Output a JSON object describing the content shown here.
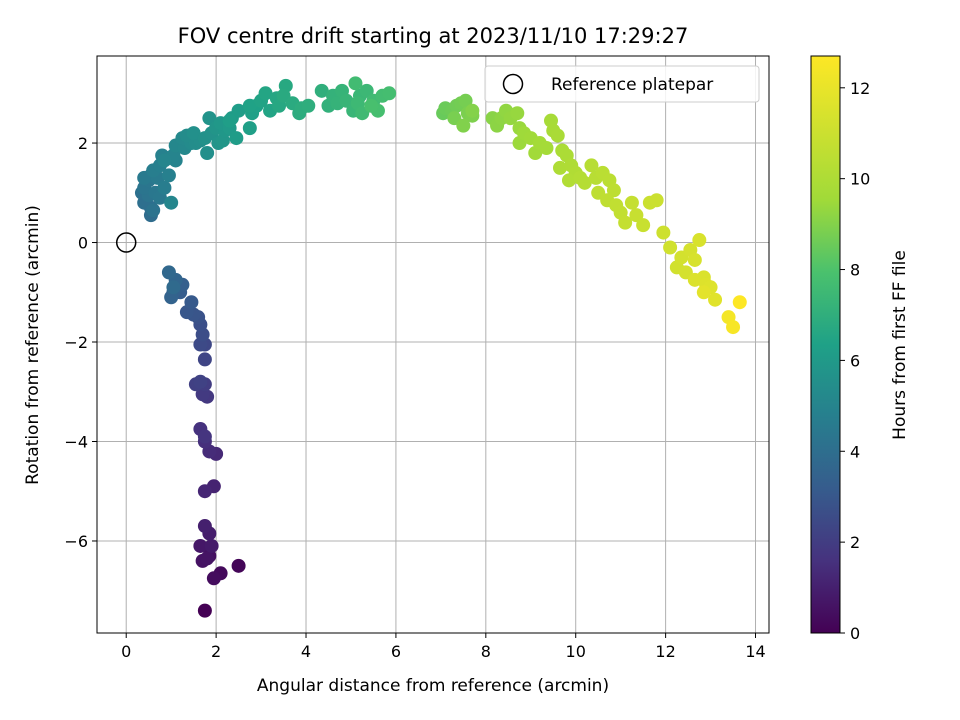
{
  "chart_data": {
    "type": "scatter",
    "title": "FOV centre drift starting at 2023/11/10 17:29:27",
    "xlabel": "Angular distance from reference (arcmin)",
    "ylabel": "Rotation from reference (arcmin)",
    "xlim": [
      -0.65,
      14.3
    ],
    "ylim": [
      -7.85,
      3.75
    ],
    "xticks": [
      0,
      2,
      4,
      6,
      8,
      10,
      12,
      14
    ],
    "yticks": [
      -6,
      -4,
      -2,
      0,
      2
    ],
    "grid": true,
    "legend": {
      "placement": "top-right",
      "entries": [
        "Reference platepar"
      ]
    },
    "reference_point": {
      "x": 0,
      "y": 0,
      "label": "Reference platepar"
    },
    "colorbar": {
      "label": "Hours from first FF file",
      "colormap": "viridis",
      "range": [
        0,
        12.7
      ],
      "ticks": [
        0,
        2,
        4,
        6,
        8,
        10,
        12
      ]
    },
    "points_columns": [
      "x",
      "y",
      "hours"
    ],
    "points": [
      [
        1.75,
        -7.4,
        0.0
      ],
      [
        2.5,
        -6.5,
        0.15
      ],
      [
        2.1,
        -6.65,
        0.25
      ],
      [
        1.95,
        -6.75,
        0.35
      ],
      [
        1.85,
        -6.3,
        0.45
      ],
      [
        1.7,
        -6.4,
        0.55
      ],
      [
        1.8,
        -6.35,
        0.6
      ],
      [
        1.65,
        -6.1,
        0.7
      ],
      [
        1.9,
        -6.1,
        0.8
      ],
      [
        1.85,
        -5.85,
        0.9
      ],
      [
        1.75,
        -5.7,
        1.0
      ],
      [
        1.95,
        -4.9,
        1.1
      ],
      [
        1.75,
        -5.0,
        1.2
      ],
      [
        2.0,
        -4.25,
        1.3
      ],
      [
        1.85,
        -4.2,
        1.4
      ],
      [
        1.75,
        -4.0,
        1.5
      ],
      [
        1.65,
        -3.75,
        1.6
      ],
      [
        1.75,
        -3.9,
        1.7
      ],
      [
        1.8,
        -3.1,
        1.8
      ],
      [
        1.7,
        -3.05,
        1.9
      ],
      [
        1.75,
        -2.85,
        2.0
      ],
      [
        1.55,
        -2.85,
        2.1
      ],
      [
        1.65,
        -2.8,
        2.2
      ],
      [
        1.75,
        -2.35,
        2.3
      ],
      [
        1.75,
        -2.05,
        2.4
      ],
      [
        1.65,
        -2.05,
        2.5
      ],
      [
        1.7,
        -1.85,
        2.6
      ],
      [
        1.65,
        -1.65,
        2.7
      ],
      [
        1.6,
        -1.5,
        2.8
      ],
      [
        1.5,
        -1.45,
        2.9
      ],
      [
        1.35,
        -1.4,
        3.0
      ],
      [
        1.45,
        -1.2,
        3.1
      ],
      [
        1.2,
        -1.0,
        3.2
      ],
      [
        1.25,
        -0.85,
        3.3
      ],
      [
        1.05,
        -1.0,
        3.4
      ],
      [
        1.0,
        -1.1,
        3.5
      ],
      [
        1.1,
        -0.75,
        3.6
      ],
      [
        0.95,
        -0.6,
        3.7
      ],
      [
        1.05,
        -0.9,
        3.8
      ],
      [
        0.55,
        0.55,
        3.9
      ],
      [
        0.55,
        0.7,
        4.0
      ],
      [
        0.4,
        0.8,
        4.05
      ],
      [
        0.35,
        1.0,
        4.1
      ],
      [
        0.6,
        0.65,
        4.2
      ],
      [
        0.5,
        0.95,
        4.25
      ],
      [
        0.4,
        1.1,
        4.3
      ],
      [
        0.5,
        1.25,
        4.35
      ],
      [
        0.65,
        1.0,
        4.4
      ],
      [
        0.75,
        0.9,
        4.45
      ],
      [
        0.55,
        1.35,
        4.5
      ],
      [
        0.4,
        1.3,
        4.55
      ],
      [
        0.7,
        1.3,
        4.6
      ],
      [
        0.85,
        1.1,
        4.65
      ],
      [
        0.6,
        1.45,
        4.7
      ],
      [
        0.75,
        1.55,
        4.75
      ],
      [
        0.95,
        1.35,
        4.8
      ],
      [
        0.8,
        1.75,
        4.85
      ],
      [
        0.95,
        1.7,
        4.9
      ],
      [
        1.1,
        1.65,
        4.95
      ],
      [
        1.05,
        1.75,
        5.0
      ],
      [
        0.85,
        1.65,
        5.05
      ],
      [
        1.0,
        0.8,
        5.1
      ],
      [
        1.1,
        1.95,
        5.15
      ],
      [
        1.3,
        1.9,
        5.2
      ],
      [
        1.25,
        2.1,
        5.25
      ],
      [
        1.45,
        2.0,
        5.3
      ],
      [
        1.35,
        2.15,
        5.35
      ],
      [
        1.55,
        2.0,
        5.4
      ],
      [
        1.65,
        2.05,
        5.45
      ],
      [
        1.8,
        1.8,
        5.5
      ],
      [
        1.5,
        2.2,
        5.55
      ],
      [
        1.75,
        2.1,
        5.6
      ],
      [
        1.9,
        2.2,
        5.65
      ],
      [
        1.85,
        2.5,
        5.7
      ],
      [
        2.05,
        2.0,
        5.75
      ],
      [
        2.0,
        2.3,
        5.8
      ],
      [
        2.15,
        2.05,
        5.85
      ],
      [
        2.2,
        2.25,
        5.9
      ],
      [
        2.1,
        2.4,
        5.95
      ],
      [
        2.3,
        2.3,
        6.0
      ],
      [
        2.35,
        2.5,
        6.05
      ],
      [
        2.45,
        2.1,
        6.1
      ],
      [
        2.5,
        2.65,
        6.15
      ],
      [
        2.3,
        2.45,
        6.2
      ],
      [
        2.75,
        2.3,
        6.25
      ],
      [
        2.8,
        2.6,
        6.3
      ],
      [
        2.9,
        2.75,
        6.35
      ],
      [
        2.75,
        2.75,
        6.4
      ],
      [
        3.0,
        2.85,
        6.45
      ],
      [
        3.2,
        2.65,
        6.5
      ],
      [
        3.1,
        3.0,
        6.55
      ],
      [
        3.35,
        2.9,
        6.6
      ],
      [
        3.4,
        2.75,
        6.65
      ],
      [
        3.55,
        3.15,
        6.7
      ],
      [
        3.5,
        2.95,
        6.75
      ],
      [
        3.7,
        2.8,
        6.8
      ],
      [
        3.85,
        2.6,
        6.85
      ],
      [
        3.9,
        2.7,
        6.9
      ],
      [
        4.05,
        2.75,
        6.95
      ],
      [
        4.35,
        3.05,
        7.0
      ],
      [
        4.5,
        2.75,
        7.1
      ],
      [
        4.6,
        2.95,
        7.15
      ],
      [
        4.7,
        2.8,
        7.2
      ],
      [
        4.8,
        3.05,
        7.25
      ],
      [
        4.9,
        2.85,
        7.3
      ],
      [
        5.05,
        2.65,
        7.35
      ],
      [
        5.2,
        2.95,
        7.4
      ],
      [
        5.35,
        3.05,
        7.45
      ],
      [
        5.15,
        2.8,
        7.5
      ],
      [
        5.25,
        2.6,
        7.55
      ],
      [
        5.5,
        2.85,
        7.6
      ],
      [
        5.1,
        3.2,
        7.65
      ],
      [
        5.7,
        2.95,
        7.7
      ],
      [
        5.85,
        3.0,
        7.75
      ],
      [
        5.6,
        2.65,
        7.8
      ],
      [
        5.45,
        2.75,
        7.85
      ],
      [
        7.05,
        2.6,
        8.5
      ],
      [
        7.1,
        2.7,
        8.55
      ],
      [
        7.25,
        2.65,
        8.6
      ],
      [
        7.35,
        2.75,
        8.65
      ],
      [
        7.45,
        2.8,
        8.7
      ],
      [
        7.55,
        2.85,
        8.75
      ],
      [
        7.3,
        2.5,
        8.8
      ],
      [
        7.6,
        2.6,
        8.85
      ],
      [
        7.7,
        2.55,
        8.9
      ],
      [
        7.5,
        2.35,
        8.95
      ],
      [
        7.7,
        2.65,
        9.0
      ],
      [
        8.15,
        2.5,
        9.1
      ],
      [
        8.25,
        2.35,
        9.15
      ],
      [
        8.35,
        2.5,
        9.2
      ],
      [
        8.45,
        2.65,
        9.25
      ],
      [
        8.55,
        2.5,
        9.3
      ],
      [
        8.7,
        2.6,
        9.35
      ],
      [
        8.75,
        2.3,
        9.4
      ],
      [
        8.75,
        2.0,
        9.45
      ],
      [
        8.85,
        2.2,
        9.5
      ],
      [
        9.0,
        2.1,
        9.55
      ],
      [
        9.1,
        1.8,
        9.6
      ],
      [
        9.2,
        2.0,
        9.65
      ],
      [
        9.35,
        1.9,
        9.7
      ],
      [
        9.45,
        2.45,
        9.75
      ],
      [
        9.5,
        2.25,
        9.8
      ],
      [
        9.6,
        2.15,
        9.85
      ],
      [
        9.7,
        1.85,
        9.9
      ],
      [
        9.8,
        1.75,
        9.95
      ],
      [
        9.65,
        1.5,
        10.0
      ],
      [
        9.9,
        1.55,
        10.05
      ],
      [
        10.0,
        1.4,
        10.1
      ],
      [
        9.85,
        1.25,
        10.15
      ],
      [
        10.1,
        1.3,
        10.2
      ],
      [
        10.2,
        1.2,
        10.25
      ],
      [
        10.35,
        1.55,
        10.3
      ],
      [
        10.45,
        1.3,
        10.35
      ],
      [
        10.6,
        1.4,
        10.4
      ],
      [
        10.75,
        1.25,
        10.45
      ],
      [
        10.85,
        1.05,
        10.5
      ],
      [
        10.5,
        1.0,
        10.55
      ],
      [
        10.7,
        0.85,
        10.6
      ],
      [
        10.9,
        0.75,
        10.65
      ],
      [
        11.0,
        0.6,
        10.7
      ],
      [
        11.1,
        0.4,
        10.75
      ],
      [
        11.25,
        0.8,
        10.8
      ],
      [
        11.35,
        0.55,
        10.85
      ],
      [
        11.5,
        0.35,
        10.9
      ],
      [
        11.65,
        0.8,
        10.95
      ],
      [
        11.8,
        0.85,
        11.0
      ],
      [
        11.95,
        0.2,
        11.05
      ],
      [
        12.1,
        -0.1,
        11.15
      ],
      [
        12.25,
        -0.5,
        11.2
      ],
      [
        12.35,
        -0.3,
        11.25
      ],
      [
        12.45,
        -0.6,
        11.3
      ],
      [
        12.55,
        -0.15,
        11.35
      ],
      [
        12.65,
        -0.35,
        11.4
      ],
      [
        12.75,
        0.05,
        11.45
      ],
      [
        12.85,
        -0.7,
        11.5
      ],
      [
        12.65,
        -0.75,
        11.55
      ],
      [
        12.9,
        -0.85,
        11.6
      ],
      [
        13.0,
        -0.9,
        11.65
      ],
      [
        13.1,
        -1.15,
        11.7
      ],
      [
        12.85,
        -1.0,
        11.8
      ],
      [
        13.4,
        -1.5,
        12.4
      ],
      [
        13.5,
        -1.7,
        12.5
      ],
      [
        13.65,
        -1.2,
        12.7
      ]
    ]
  }
}
